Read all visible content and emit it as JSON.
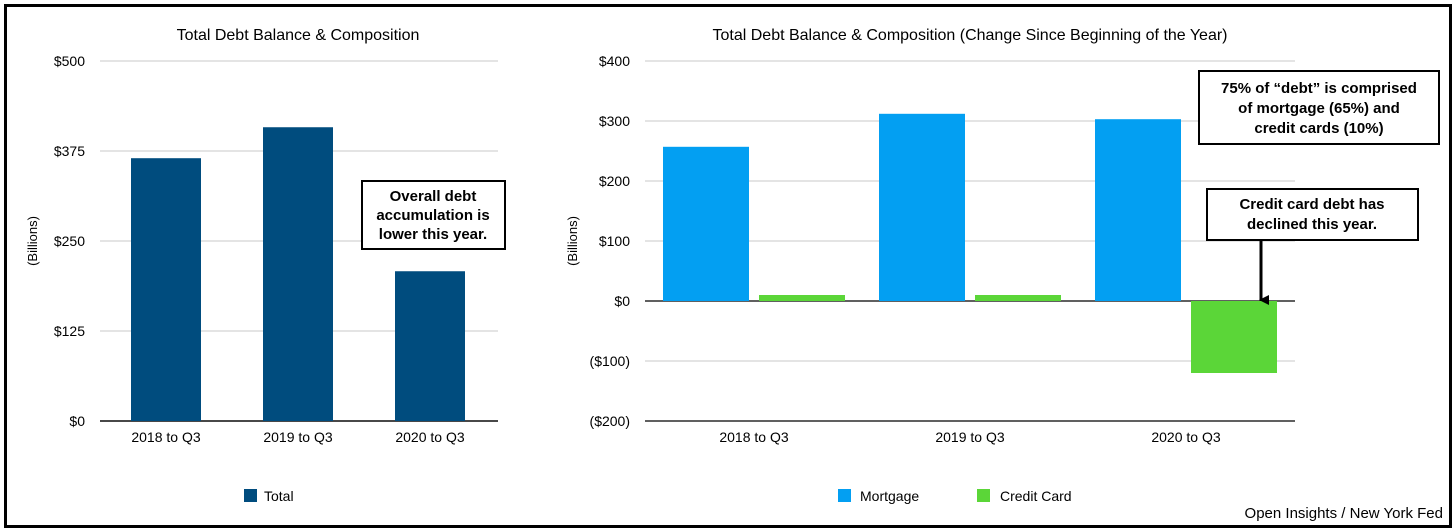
{
  "source": "Open Insights / New York Fed",
  "colors": {
    "total": "#004c7e",
    "mortgage": "#039ff2",
    "credit_card": "#5bd638",
    "grid": "#c8c8c8",
    "axis": "#000000"
  },
  "chart_data": [
    {
      "type": "bar",
      "title": "Total Debt Balance & Composition",
      "ylabel": "(Billions)",
      "xlabel": "",
      "categories": [
        "2018 to Q3",
        "2019 to Q3",
        "2020 to Q3"
      ],
      "series": [
        {
          "name": "Total",
          "values": [
            365,
            408,
            208
          ]
        }
      ],
      "ylim": [
        0,
        500
      ],
      "yticks": [
        0,
        125,
        250,
        375,
        500
      ],
      "ytick_labels": [
        "$0",
        "$125",
        "$250",
        "$375",
        "$500"
      ],
      "legend": "bottom",
      "annotations": [
        {
          "lines": [
            "Overall debt",
            "accumulation is",
            "lower this year."
          ]
        }
      ]
    },
    {
      "type": "bar",
      "title": "Total Debt Balance & Composition (Change Since Beginning of the Year)",
      "ylabel": "(Billions)",
      "xlabel": "",
      "categories": [
        "2018 to Q3",
        "2019 to Q3",
        "2020 to Q3"
      ],
      "series": [
        {
          "name": "Mortgage",
          "values": [
            257,
            312,
            303
          ]
        },
        {
          "name": "Credit Card",
          "values": [
            10,
            10,
            -120
          ]
        }
      ],
      "ylim": [
        -200,
        400
      ],
      "yticks": [
        -200,
        -100,
        0,
        100,
        200,
        300,
        400
      ],
      "ytick_labels": [
        "($200)",
        "($100)",
        "$0",
        "$100",
        "$200",
        "$300",
        "$400"
      ],
      "legend": "bottom",
      "annotations": [
        {
          "lines": [
            "75% of “debt” is comprised",
            "of mortgage (65%) and",
            "credit cards (10%)"
          ]
        },
        {
          "lines": [
            "Credit card debt has",
            "declined this year."
          ]
        }
      ]
    }
  ]
}
